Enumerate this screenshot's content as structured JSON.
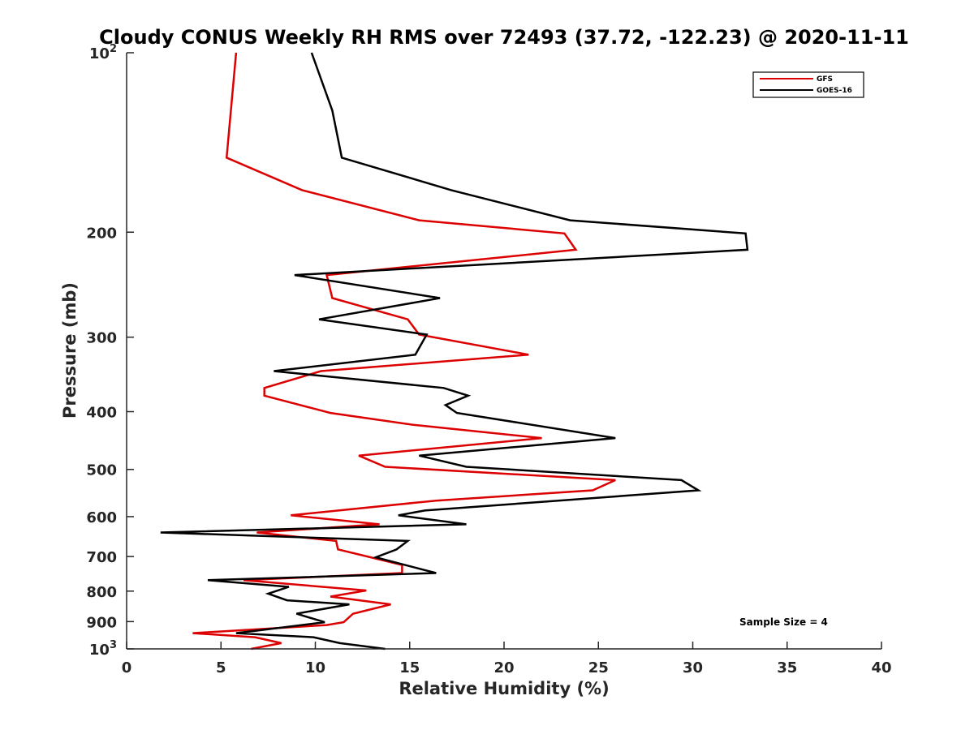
{
  "chart_data": {
    "type": "line",
    "title": "Cloudy CONUS Weekly RH RMS over 72493 (37.72, -122.23) @ 2020-11-11",
    "xlabel": "Relative Humidity (%)",
    "ylabel": "Pressure (mb)",
    "xlim": [
      0,
      40
    ],
    "ylim": [
      100,
      1000
    ],
    "yscale": "log",
    "y_reversed": true,
    "x_ticks": [
      0,
      5,
      10,
      15,
      20,
      25,
      30,
      35,
      40
    ],
    "y_ticks": [
      {
        "value": 100,
        "label": "10",
        "sup": "2"
      },
      {
        "value": 200,
        "label": "200",
        "sup": ""
      },
      {
        "value": 300,
        "label": "300",
        "sup": ""
      },
      {
        "value": 400,
        "label": "400",
        "sup": ""
      },
      {
        "value": 500,
        "label": "500",
        "sup": ""
      },
      {
        "value": 600,
        "label": "600",
        "sup": ""
      },
      {
        "value": 700,
        "label": "700",
        "sup": ""
      },
      {
        "value": 800,
        "label": "800",
        "sup": ""
      },
      {
        "value": 900,
        "label": "900",
        "sup": ""
      },
      {
        "value": 1000,
        "label": "10",
        "sup": "3"
      }
    ],
    "grid": false,
    "legend_position": "top-right",
    "annotation": "Sample Size = 4",
    "series": [
      {
        "name": "GFS",
        "color": "#dd0000",
        "points": [
          [
            5.8,
            100
          ],
          [
            5.3,
            150
          ],
          [
            9.3,
            170
          ],
          [
            15.5,
            191
          ],
          [
            23.2,
            201
          ],
          [
            23.8,
            214
          ],
          [
            10.6,
            236
          ],
          [
            10.9,
            258
          ],
          [
            14.9,
            280
          ],
          [
            15.5,
            297
          ],
          [
            21.3,
            321
          ],
          [
            10.3,
            342
          ],
          [
            7.3,
            365
          ],
          [
            7.3,
            376
          ],
          [
            10.8,
            402
          ],
          [
            15.2,
            421
          ],
          [
            22.0,
            443
          ],
          [
            12.3,
            474
          ],
          [
            13.7,
            495
          ],
          [
            25.9,
            521
          ],
          [
            24.7,
            542
          ],
          [
            16.4,
            564
          ],
          [
            8.7,
            597
          ],
          [
            13.4,
            618
          ],
          [
            6.9,
            638
          ],
          [
            11.1,
            659
          ],
          [
            11.2,
            681
          ],
          [
            14.6,
            723
          ],
          [
            14.6,
            746
          ],
          [
            6.2,
            767
          ],
          [
            12.7,
            798
          ],
          [
            10.8,
            817
          ],
          [
            14.0,
            842
          ],
          [
            12.0,
            873
          ],
          [
            11.5,
            902
          ],
          [
            10.6,
            912
          ],
          [
            3.5,
            941
          ],
          [
            6.8,
            956
          ],
          [
            8.2,
            978
          ],
          [
            6.6,
            1000
          ]
        ]
      },
      {
        "name": "GOES-16",
        "color": "#000000",
        "points": [
          [
            9.8,
            100
          ],
          [
            10.9,
            125
          ],
          [
            11.4,
            150
          ],
          [
            17.2,
            170
          ],
          [
            23.5,
            191
          ],
          [
            32.8,
            201
          ],
          [
            32.9,
            214
          ],
          [
            8.9,
            236
          ],
          [
            16.6,
            258
          ],
          [
            10.2,
            280
          ],
          [
            15.9,
            297
          ],
          [
            15.3,
            321
          ],
          [
            7.8,
            342
          ],
          [
            16.8,
            365
          ],
          [
            18.1,
            376
          ],
          [
            16.9,
            390
          ],
          [
            17.5,
            402
          ],
          [
            25.9,
            443
          ],
          [
            15.5,
            474
          ],
          [
            18.0,
            495
          ],
          [
            29.4,
            521
          ],
          [
            30.3,
            542
          ],
          [
            15.8,
            586
          ],
          [
            14.4,
            597
          ],
          [
            18.0,
            618
          ],
          [
            1.8,
            638
          ],
          [
            14.9,
            659
          ],
          [
            14.3,
            681
          ],
          [
            13.2,
            702
          ],
          [
            16.4,
            746
          ],
          [
            4.3,
            767
          ],
          [
            8.6,
            787
          ],
          [
            7.5,
            808
          ],
          [
            8.5,
            829
          ],
          [
            11.8,
            842
          ],
          [
            9.0,
            873
          ],
          [
            10.5,
            902
          ],
          [
            5.8,
            941
          ],
          [
            9.9,
            956
          ],
          [
            11.3,
            978
          ],
          [
            13.7,
            1000
          ]
        ]
      }
    ]
  }
}
